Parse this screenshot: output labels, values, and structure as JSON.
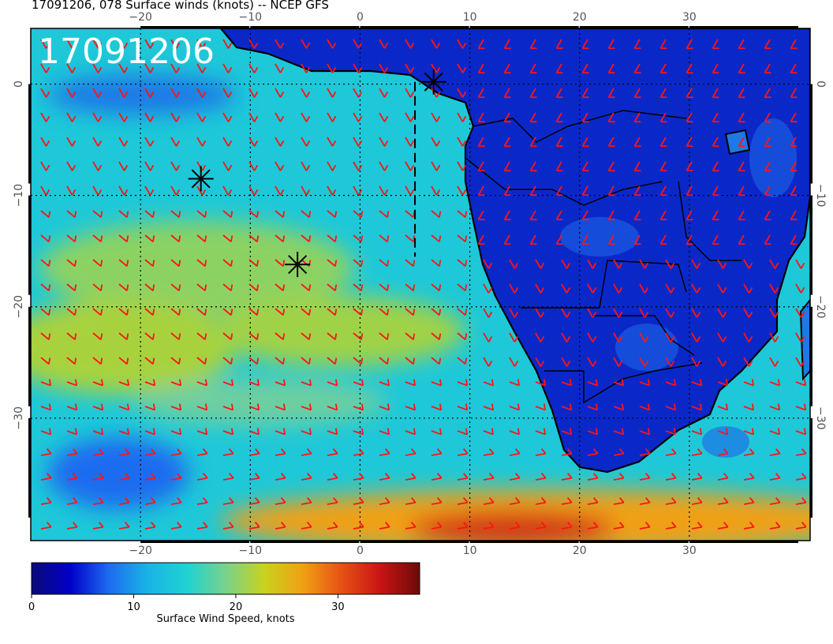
{
  "title": "17091206, 078 Surface winds (knots) -- NCEP GFS",
  "stamp": "17091206",
  "axes": {
    "lon_range": [
      -30,
      41
    ],
    "lat_range": [
      5,
      -41
    ],
    "lon_ticks": [
      -20,
      -10,
      0,
      10,
      20,
      30
    ],
    "lat_ticks": [
      0,
      -10,
      -20,
      -30
    ],
    "lon_labels": [
      "−20",
      "−10",
      "0",
      "10",
      "20",
      "30"
    ],
    "lat_labels": [
      "0",
      "−10",
      "−20",
      "−30"
    ]
  },
  "colorbar": {
    "label": "Surface Wind Speed, knots",
    "min": 0,
    "max": 38,
    "ticks": [
      "0",
      "10",
      "20",
      "30"
    ],
    "tick_values": [
      0,
      10,
      20,
      30
    ],
    "colors": [
      "#0a0a78",
      "#0000c8",
      "#1e6cf0",
      "#19b4e6",
      "#1ed2d2",
      "#78d28c",
      "#c8d21e",
      "#f0a014",
      "#e65014",
      "#c81414",
      "#6e0a0a"
    ]
  },
  "markers": [
    {
      "lon": -14.5,
      "lat": -8.5
    },
    {
      "lon": -5.7,
      "lat": -16.2
    },
    {
      "lon": 6.7,
      "lat": 0.2
    }
  ],
  "track": [
    [
      5,
      0.2
    ],
    [
      5,
      -15.5
    ]
  ],
  "colors": {
    "barb": "#ff1414",
    "coast": "#000000",
    "grid": "#000000"
  }
}
